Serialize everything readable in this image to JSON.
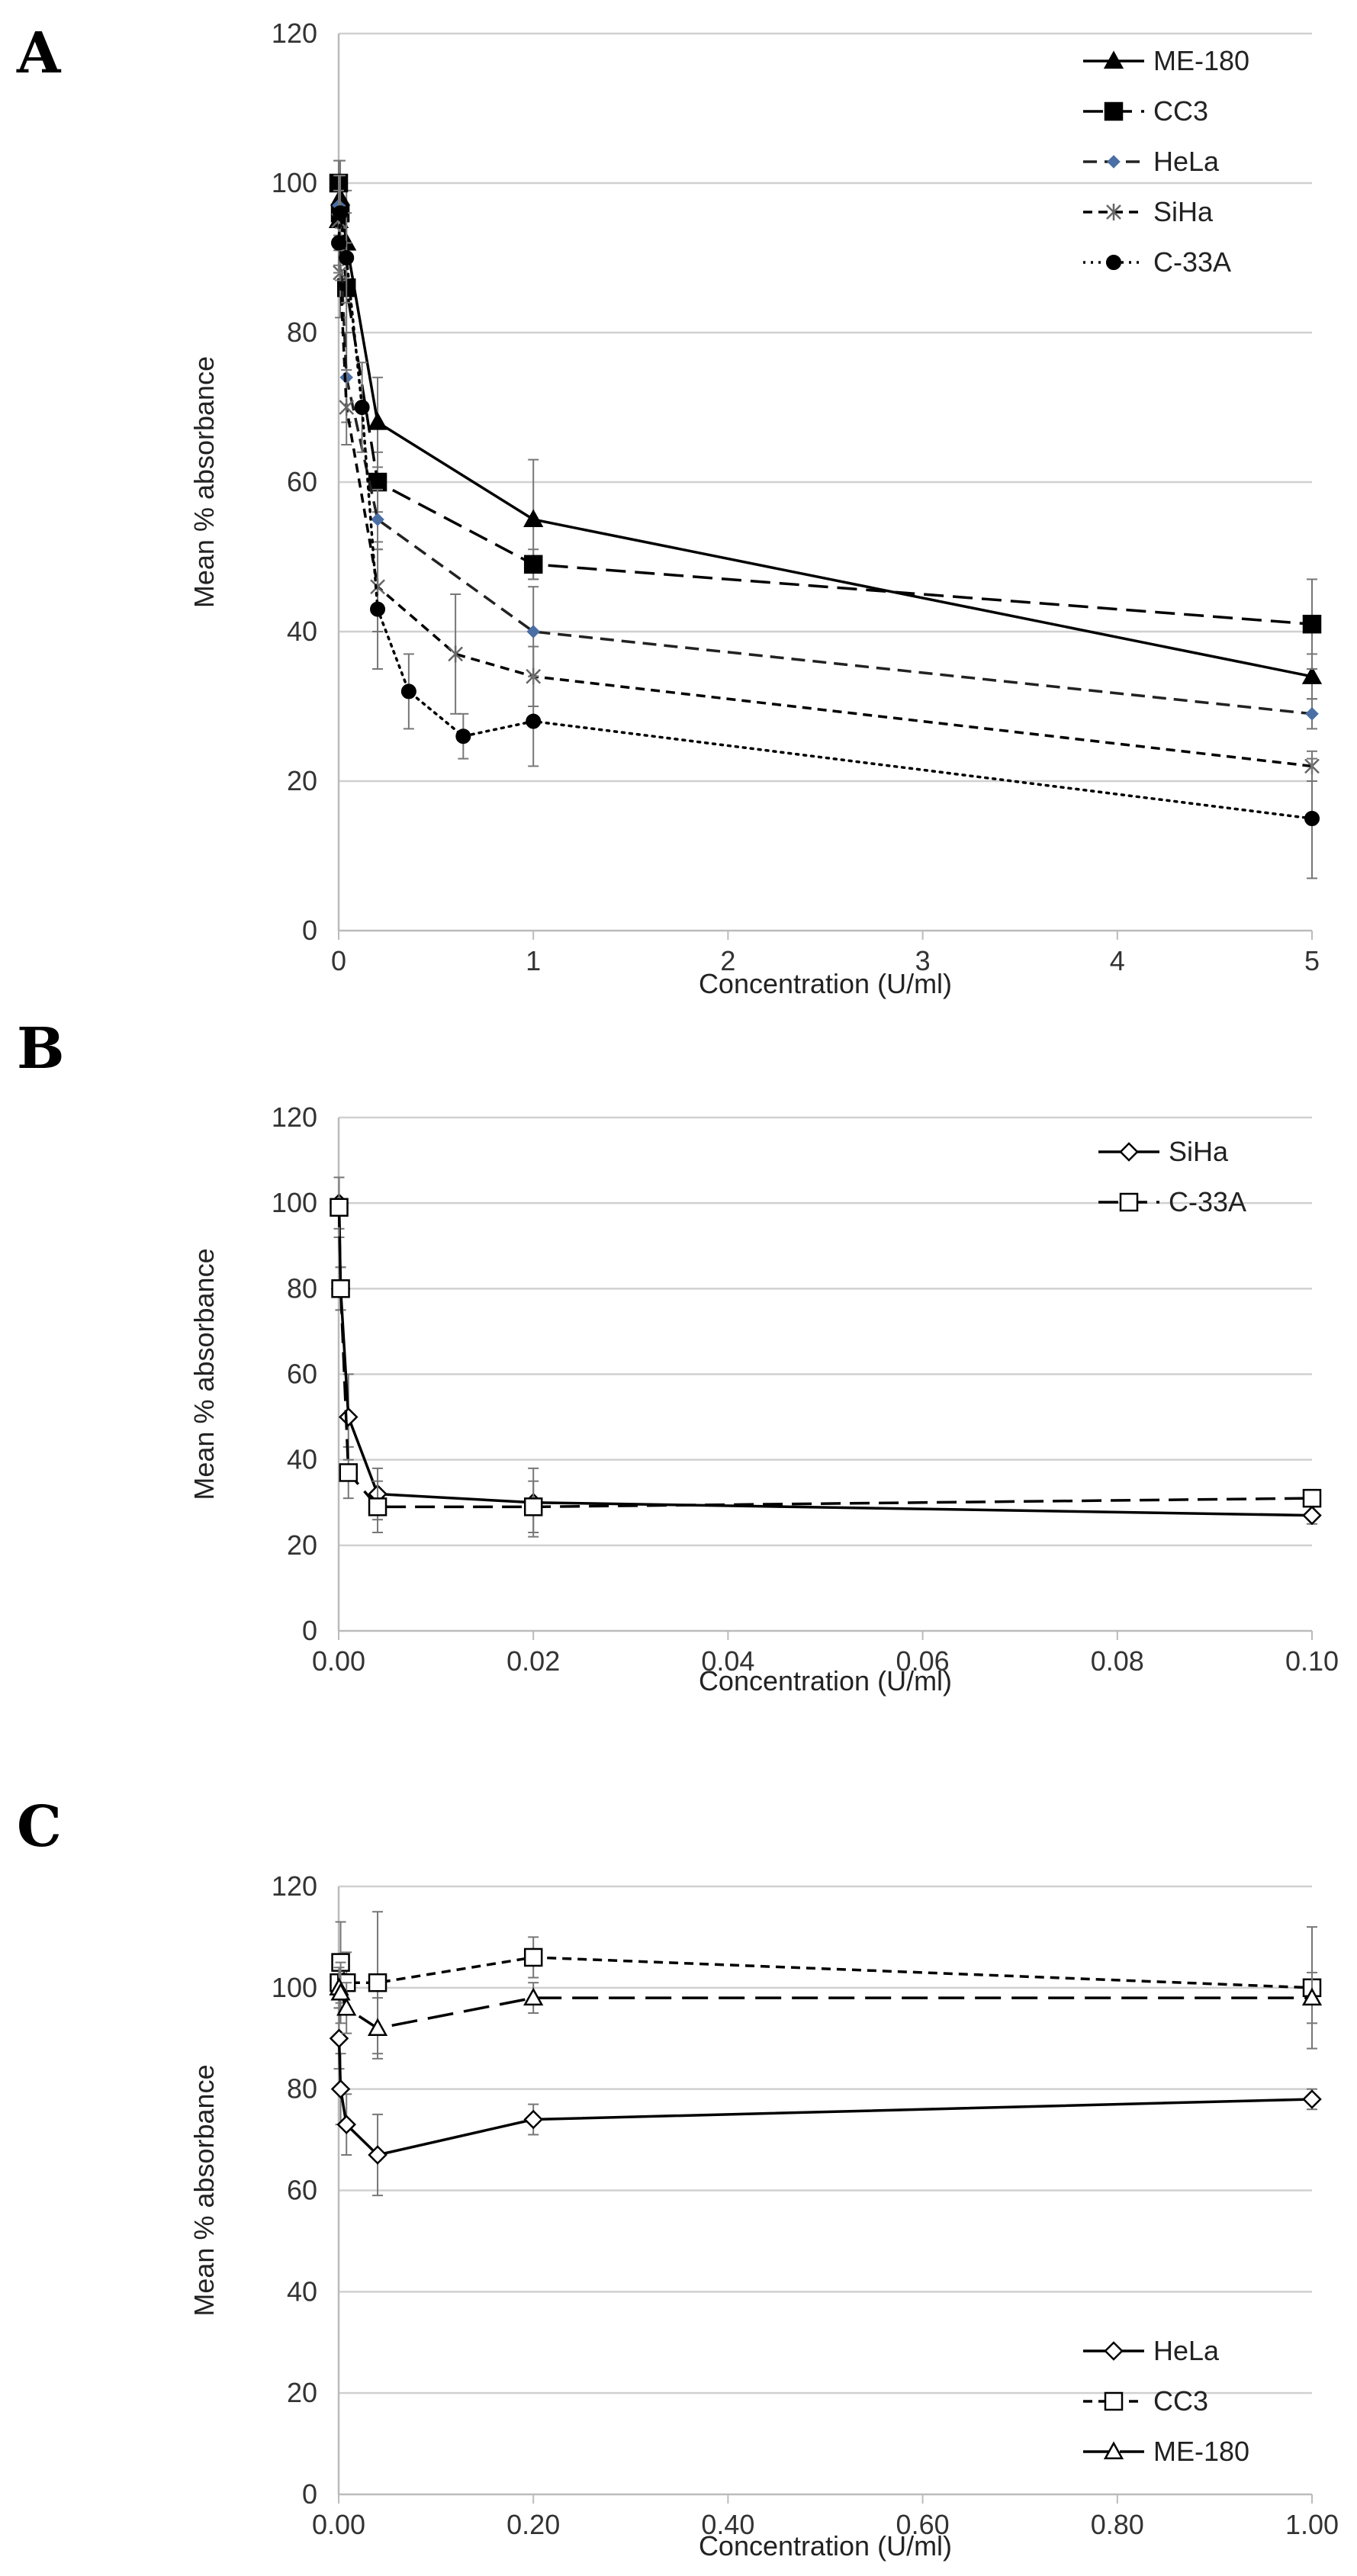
{
  "chart_data": [
    {
      "panel": "A",
      "type": "line",
      "xlabel": "Concentration (U/ml)",
      "ylabel": "Mean % absorbance",
      "xlim": [
        0,
        5
      ],
      "ylim": [
        0,
        120
      ],
      "xticks": [
        0,
        1,
        2,
        3,
        4,
        5
      ],
      "xtick_labels": [
        "0",
        "1",
        "2",
        "3",
        "4",
        "5"
      ],
      "yticks": [
        0,
        20,
        40,
        60,
        80,
        100,
        120
      ],
      "ytick_labels": [
        "0",
        "20",
        "40",
        "60",
        "80",
        "100",
        "120"
      ],
      "grid": true,
      "legend_position": "top-right",
      "series": [
        {
          "name": "ME-180",
          "marker": "triangle",
          "line": "solid",
          "x": [
            0.0,
            0.008,
            0.04,
            0.2,
            1,
            5
          ],
          "y": [
            95,
            98,
            92,
            68,
            55,
            34
          ],
          "err": [
            6,
            5,
            7,
            6,
            8,
            3
          ]
        },
        {
          "name": "CC3",
          "marker": "square",
          "line": "dashed",
          "x": [
            0.0,
            0.008,
            0.04,
            0.2,
            1,
            5
          ],
          "y": [
            100,
            96,
            86,
            60,
            49,
            41
          ],
          "err": [
            3,
            4,
            6,
            4,
            2,
            6
          ]
        },
        {
          "name": "HeLa",
          "marker": "diamond",
          "line": "dashed-medium",
          "x": [
            0.0,
            0.008,
            0.04,
            0.2,
            1,
            5
          ],
          "y": [
            97,
            92,
            74,
            55,
            40,
            29
          ],
          "err": [
            4,
            5,
            6,
            4,
            6,
            2
          ]
        },
        {
          "name": "SiHa",
          "marker": "cross",
          "line": "dashed-short",
          "x": [
            0.0,
            0.008,
            0.04,
            0.2,
            0.6,
            1,
            5
          ],
          "y": [
            95,
            88,
            70,
            46,
            37,
            34,
            22
          ],
          "err": [
            4,
            6,
            5,
            6,
            8,
            4,
            2
          ]
        },
        {
          "name": "C-33A",
          "marker": "circle",
          "line": "dotted",
          "x": [
            0.0,
            0.008,
            0.04,
            0.12,
            0.2,
            0.36,
            0.64,
            1,
            5
          ],
          "y": [
            92,
            96,
            90,
            70,
            43,
            32,
            26,
            28,
            15
          ],
          "err": [
            4,
            5,
            6,
            6,
            8,
            5,
            3,
            6,
            8
          ]
        }
      ]
    },
    {
      "panel": "B",
      "type": "line",
      "xlabel": "Concentration (U/ml)",
      "ylabel": "Mean % absorbance",
      "xlim": [
        0,
        0.1
      ],
      "ylim": [
        0,
        120
      ],
      "xticks": [
        0,
        0.02,
        0.04,
        0.06,
        0.08,
        0.1
      ],
      "xtick_labels": [
        "0.00",
        "0.02",
        "0.04",
        "0.06",
        "0.08",
        "0.10"
      ],
      "yticks": [
        0,
        20,
        40,
        60,
        80,
        100,
        120
      ],
      "ytick_labels": [
        "0",
        "20",
        "40",
        "60",
        "80",
        "100",
        "120"
      ],
      "grid": true,
      "legend_position": "top-right",
      "series": [
        {
          "name": "SiHa",
          "marker": "open-diamond",
          "line": "solid",
          "x": [
            4e-05,
            0.0002,
            0.001,
            0.004,
            0.02,
            0.1
          ],
          "y": [
            100,
            80,
            50,
            32,
            30,
            27
          ],
          "err": [
            6,
            5,
            10,
            6,
            8,
            2
          ]
        },
        {
          "name": "C-33A",
          "marker": "open-square",
          "line": "dashed",
          "x": [
            4e-05,
            0.0002,
            0.001,
            0.004,
            0.02,
            0.1
          ],
          "y": [
            99,
            80,
            37,
            29,
            29,
            31
          ],
          "err": [
            7,
            5,
            6,
            6,
            6,
            2
          ]
        }
      ]
    },
    {
      "panel": "C",
      "type": "line",
      "xlabel": "Concentration (U/ml)",
      "ylabel": "Mean % absorbance",
      "xlim": [
        0,
        1
      ],
      "ylim": [
        0,
        120
      ],
      "xticks": [
        0,
        0.2,
        0.4,
        0.6,
        0.8,
        1
      ],
      "xtick_labels": [
        "0.00",
        "0.20",
        "0.40",
        "0.60",
        "0.80",
        "1.00"
      ],
      "yticks": [
        0,
        20,
        40,
        60,
        80,
        100,
        120
      ],
      "ytick_labels": [
        "0",
        "20",
        "40",
        "60",
        "80",
        "100",
        "120"
      ],
      "grid": true,
      "legend_position": "bottom-right",
      "series": [
        {
          "name": "HeLa",
          "marker": "open-diamond",
          "line": "solid",
          "x": [
            0.0004,
            0.002,
            0.008,
            0.04,
            0.2,
            1
          ],
          "y": [
            90,
            80,
            73,
            67,
            74,
            78
          ],
          "err": [
            6,
            7,
            6,
            8,
            3,
            2
          ]
        },
        {
          "name": "CC3",
          "marker": "open-square",
          "line": "dashed-short",
          "x": [
            0.0004,
            0.002,
            0.008,
            0.04,
            0.2,
            1
          ],
          "y": [
            101,
            105,
            101,
            101,
            106,
            100
          ],
          "err": [
            5,
            8,
            6,
            14,
            4,
            12
          ]
        },
        {
          "name": "ME-180",
          "marker": "open-triangle",
          "line": "dashed-long",
          "x": [
            0.0004,
            0.002,
            0.008,
            0.04,
            0.2,
            1
          ],
          "y": [
            100,
            99,
            96,
            92,
            98,
            98
          ],
          "err": [
            4,
            6,
            5,
            6,
            3,
            5
          ]
        }
      ]
    }
  ]
}
